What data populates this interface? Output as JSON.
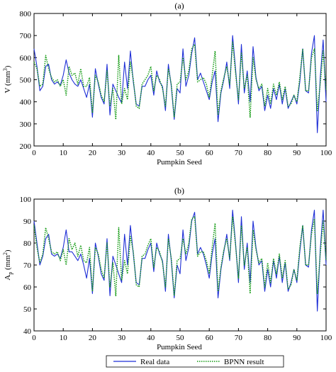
{
  "legend": {
    "entries": [
      {
        "label": "Real data",
        "color": "#1f2fd6",
        "style": "solid"
      },
      {
        "label": "BPNN result",
        "color": "#139a13",
        "style": "dotted"
      }
    ],
    "placement": "bottom-center"
  },
  "chart_data": [
    {
      "type": "line",
      "panel_label": "(a)",
      "xlabel": "Pumpkin Seed",
      "ylabel": "V (mm³)",
      "ylabel_main": "V (mm",
      "ylabel_sup": "3",
      "ylabel_close": ")",
      "xlim": [
        0,
        100
      ],
      "ylim": [
        200,
        800
      ],
      "xticks": [
        0,
        10,
        20,
        30,
        40,
        50,
        60,
        70,
        80,
        90,
        100
      ],
      "yticks": [
        200,
        300,
        400,
        500,
        600,
        700,
        800
      ],
      "grid": false,
      "series": [
        {
          "name": "Real data",
          "color": "#1f2fd6",
          "values": [
            640,
            560,
            450,
            470,
            560,
            570,
            500,
            480,
            490,
            475,
            520,
            590,
            530,
            500,
            480,
            470,
            500,
            460,
            420,
            480,
            330,
            550,
            480,
            420,
            390,
            570,
            340,
            480,
            450,
            420,
            395,
            580,
            460,
            630,
            490,
            390,
            380,
            470,
            470,
            500,
            520,
            430,
            540,
            490,
            470,
            360,
            570,
            470,
            320,
            460,
            440,
            640,
            470,
            520,
            620,
            690,
            500,
            530,
            490,
            450,
            410,
            490,
            540,
            310,
            440,
            500,
            580,
            460,
            700,
            550,
            390,
            660,
            440,
            540,
            400,
            650,
            510,
            450,
            470,
            360,
            430,
            370,
            460,
            410,
            480,
            390,
            460,
            370,
            400,
            430,
            390,
            490,
            640,
            450,
            440,
            620,
            700,
            260,
            510,
            680,
            400
          ]
        },
        {
          "name": "BPNN result",
          "color": "#139a13",
          "values": [
            580,
            550,
            470,
            480,
            610,
            550,
            510,
            490,
            500,
            470,
            500,
            430,
            560,
            520,
            530,
            480,
            550,
            470,
            470,
            510,
            350,
            520,
            490,
            430,
            400,
            540,
            380,
            460,
            320,
            610,
            390,
            460,
            410,
            580,
            500,
            380,
            370,
            480,
            500,
            520,
            560,
            450,
            520,
            500,
            460,
            380,
            550,
            480,
            330,
            480,
            490,
            600,
            500,
            540,
            640,
            660,
            490,
            500,
            510,
            480,
            420,
            520,
            630,
            340,
            450,
            510,
            560,
            480,
            670,
            530,
            410,
            620,
            460,
            520,
            330,
            600,
            500,
            460,
            480,
            380,
            460,
            390,
            480,
            430,
            490,
            410,
            470,
            380,
            390,
            430,
            400,
            510,
            640,
            450,
            450,
            600,
            640,
            360,
            480,
            630,
            450
          ]
        }
      ]
    },
    {
      "type": "line",
      "panel_label": "(b)",
      "xlabel": "Pumpkin Seed",
      "ylabel": "Ap (mm²)",
      "ylabel_main": "A",
      "ylabel_sub": "p",
      "ylabel_rest": " (mm",
      "ylabel_sup": "2",
      "ylabel_close": ")",
      "xlim": [
        0,
        100
      ],
      "ylim": [
        40,
        100
      ],
      "xticks": [
        0,
        10,
        20,
        30,
        40,
        50,
        60,
        70,
        80,
        90,
        100
      ],
      "yticks": [
        40,
        50,
        60,
        70,
        80,
        90,
        100
      ],
      "grid": false,
      "series": [
        {
          "name": "Real data",
          "color": "#1f2fd6",
          "values": [
            90,
            80,
            70,
            74,
            82,
            84,
            75,
            74,
            75,
            73,
            78,
            86,
            76,
            76,
            74,
            72,
            75,
            70,
            64,
            73,
            57,
            80,
            74,
            66,
            63,
            82,
            56,
            74,
            70,
            66,
            62,
            84,
            70,
            88,
            75,
            62,
            61,
            73,
            73,
            77,
            80,
            67,
            80,
            75,
            72,
            58,
            84,
            72,
            55,
            70,
            66,
            86,
            72,
            78,
            90,
            94,
            75,
            78,
            75,
            70,
            64,
            75,
            82,
            55,
            68,
            76,
            84,
            72,
            95,
            80,
            62,
            92,
            68,
            80,
            62,
            90,
            78,
            70,
            72,
            58,
            68,
            60,
            72,
            64,
            74,
            62,
            71,
            58,
            62,
            68,
            62,
            76,
            88,
            70,
            69,
            86,
            95,
            49,
            77,
            95,
            70
          ]
        },
        {
          "name": "BPNN result",
          "color": "#139a13",
          "values": [
            88,
            78,
            71,
            75,
            87,
            82,
            76,
            75,
            76,
            72,
            77,
            70,
            82,
            77,
            80,
            74,
            79,
            72,
            71,
            78,
            58,
            78,
            75,
            68,
            64,
            80,
            60,
            71,
            56,
            87,
            63,
            72,
            66,
            83,
            76,
            61,
            60,
            74,
            75,
            79,
            82,
            69,
            78,
            76,
            71,
            60,
            82,
            73,
            56,
            72,
            73,
            82,
            75,
            80,
            91,
            92,
            74,
            76,
            76,
            72,
            66,
            78,
            89,
            58,
            69,
            77,
            82,
            73,
            92,
            79,
            64,
            88,
            70,
            78,
            57,
            86,
            77,
            71,
            73,
            60,
            71,
            62,
            73,
            66,
            75,
            64,
            72,
            59,
            61,
            68,
            63,
            78,
            88,
            70,
            70,
            84,
            91,
            57,
            75,
            90,
            72
          ]
        }
      ]
    }
  ]
}
